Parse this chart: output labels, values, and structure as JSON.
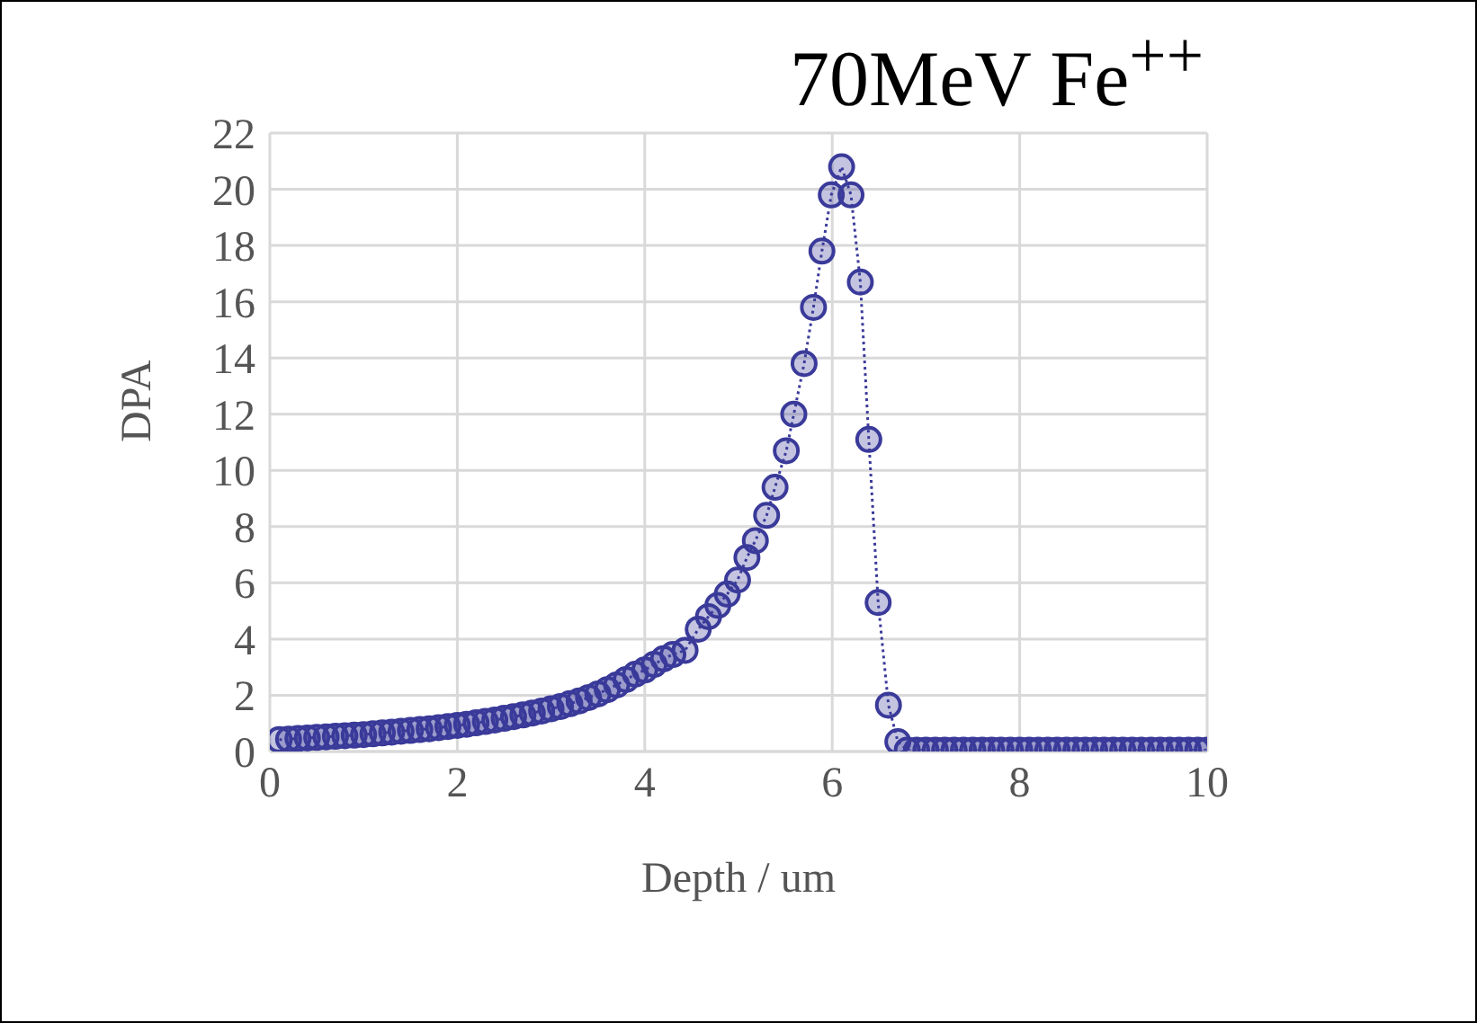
{
  "chart_data": {
    "type": "line",
    "title": "70MeV Fe$^{++}$",
    "xlabel": "Depth / um",
    "ylabel": "DPA",
    "xlim": [
      0,
      10
    ],
    "xticks": [
      0,
      2,
      4,
      6,
      8,
      10
    ],
    "ylim": [
      0,
      22
    ],
    "yticks": [
      0,
      2,
      4,
      6,
      8,
      10,
      12,
      14,
      16,
      18,
      20,
      22
    ],
    "grid": true,
    "legend": false,
    "marker": "circle",
    "line_style": "dotted",
    "series": [
      {
        "color": "#3a3a9a",
        "x": [
          0.1,
          0.2,
          0.3,
          0.4,
          0.5,
          0.6,
          0.7,
          0.8,
          0.9,
          1.0,
          1.1,
          1.2,
          1.3,
          1.4,
          1.5,
          1.6,
          1.7,
          1.8,
          1.9,
          2.0,
          2.1,
          2.2,
          2.3,
          2.4,
          2.5,
          2.6,
          2.7,
          2.8,
          2.9,
          3.0,
          3.1,
          3.2,
          3.3,
          3.4,
          3.5,
          3.6,
          3.7,
          3.8,
          3.9,
          4.0,
          4.1,
          4.2,
          4.3,
          4.43,
          4.57,
          4.68,
          4.78,
          4.88,
          4.99,
          5.09,
          5.18,
          5.3,
          5.39,
          5.51,
          5.59,
          5.7,
          5.8,
          5.89,
          5.99,
          6.1,
          6.2,
          6.3,
          6.39,
          6.49,
          6.6,
          6.7,
          6.8,
          6.9,
          7.0,
          7.1,
          7.2,
          7.3,
          7.4,
          7.5,
          7.6,
          7.7,
          7.8,
          7.9,
          8.0,
          8.1,
          8.2,
          8.3,
          8.4,
          8.5,
          8.6,
          8.7,
          8.8,
          8.9,
          9.0,
          9.1,
          9.2,
          9.3,
          9.4,
          9.5,
          9.6,
          9.7,
          9.8,
          9.9,
          10.0
        ],
        "values": [
          0.42,
          0.44,
          0.46,
          0.48,
          0.5,
          0.52,
          0.54,
          0.56,
          0.58,
          0.6,
          0.63,
          0.66,
          0.69,
          0.72,
          0.75,
          0.78,
          0.81,
          0.85,
          0.89,
          0.93,
          0.97,
          1.02,
          1.07,
          1.12,
          1.18,
          1.24,
          1.3,
          1.37,
          1.44,
          1.52,
          1.6,
          1.7,
          1.8,
          1.92,
          2.05,
          2.2,
          2.37,
          2.56,
          2.75,
          2.9,
          3.1,
          3.3,
          3.45,
          3.6,
          4.35,
          4.8,
          5.2,
          5.6,
          6.1,
          6.9,
          7.5,
          8.4,
          9.4,
          10.7,
          12.0,
          13.8,
          15.8,
          17.8,
          19.8,
          20.8,
          19.8,
          16.7,
          11.1,
          5.3,
          1.65,
          0.35,
          0.05,
          0.05,
          0.05,
          0.05,
          0.05,
          0.05,
          0.05,
          0.05,
          0.05,
          0.05,
          0.05,
          0.05,
          0.05,
          0.05,
          0.05,
          0.05,
          0.05,
          0.05,
          0.05,
          0.05,
          0.05,
          0.05,
          0.05,
          0.05,
          0.05,
          0.05,
          0.05,
          0.05,
          0.05,
          0.05,
          0.05,
          0.05,
          0.05
        ]
      }
    ]
  }
}
